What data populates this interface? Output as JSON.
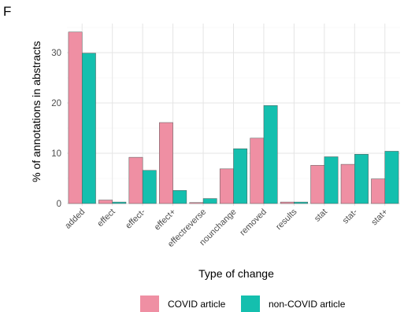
{
  "panel_label": "F",
  "colors": {
    "covid": "#ef8fa3",
    "noncovid": "#14bfae",
    "bar_outline": "#555555"
  },
  "chart_data": {
    "type": "bar",
    "categories": [
      "added",
      "effect",
      "effect-",
      "effect+",
      "effectreverse",
      "nounchange",
      "removed",
      "results",
      "stat",
      "stat-",
      "stat+"
    ],
    "series": [
      {
        "name": "COVID article",
        "values": [
          34.1,
          0.7,
          9.2,
          16.1,
          0.2,
          6.9,
          13.0,
          0.3,
          7.6,
          7.8,
          4.9
        ]
      },
      {
        "name": "non-COVID article",
        "values": [
          29.9,
          0.3,
          6.6,
          2.6,
          1.0,
          10.9,
          19.5,
          0.3,
          9.3,
          9.8,
          10.4
        ]
      }
    ],
    "title": "",
    "xlabel": "Type of change",
    "ylabel": "% of annotations in abstracts",
    "ylim": [
      0,
      36
    ],
    "yticks": [
      0,
      10,
      20,
      30
    ],
    "grid": true,
    "legend_position": "bottom"
  }
}
